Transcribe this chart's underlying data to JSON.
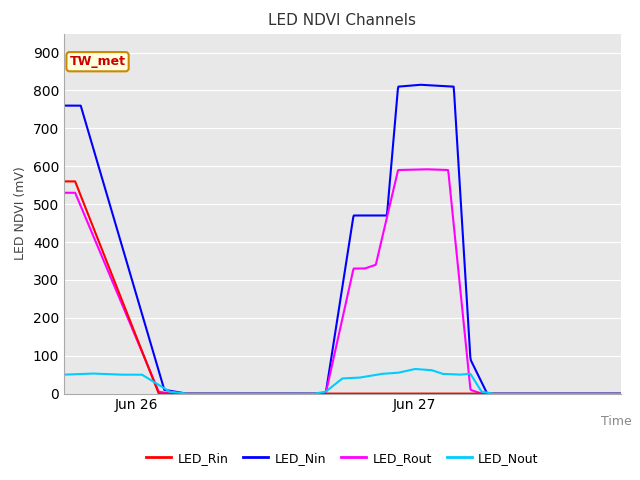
{
  "title": "LED NDVI Channels",
  "ylabel": "LED NDVI (mV)",
  "xlabel": "Time",
  "annotation_text": "TW_met",
  "annotation_color": "#cc0000",
  "annotation_bg": "#ffffdd",
  "annotation_border": "#cc8800",
  "ylim": [
    0,
    950
  ],
  "yticks": [
    0,
    100,
    200,
    300,
    400,
    500,
    600,
    700,
    800,
    900
  ],
  "xtick_positions": [
    0.13,
    0.63
  ],
  "xtick_labels": [
    "Jun 26",
    "Jun 27"
  ],
  "legend_labels": [
    "LED_Rin",
    "LED_Nin",
    "LED_Rout",
    "LED_Nout"
  ],
  "legend_colors": [
    "#ff0000",
    "#0000ff",
    "#ff00ff",
    "#00ccff"
  ],
  "plot_bg": "#e8e8e8",
  "grid_color": "#ffffff",
  "line_width": 1.5
}
